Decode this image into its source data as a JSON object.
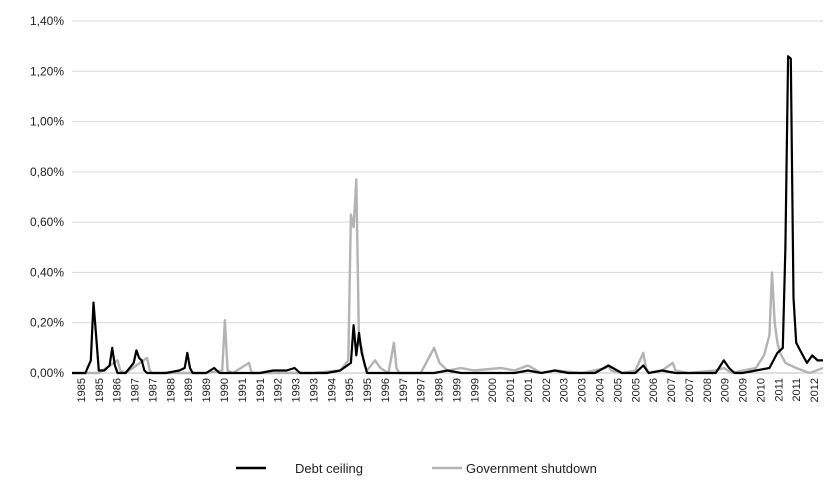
{
  "chart_data": {
    "type": "line",
    "title": "",
    "xlabel": "",
    "ylabel": "",
    "ylim": [
      0,
      1.4
    ],
    "y_ticks": [
      "0,00%",
      "0,20%",
      "0,40%",
      "0,60%",
      "0,80%",
      "1,00%",
      "1,20%",
      "1,40%"
    ],
    "x_tick_labels": [
      "1985",
      "1985",
      "1986",
      "1987",
      "1987",
      "1988",
      "1989",
      "1989",
      "1990",
      "1991",
      "1991",
      "1992",
      "1993",
      "1993",
      "1994",
      "1995",
      "1995",
      "1996",
      "1997",
      "1997",
      "1998",
      "1999",
      "1999",
      "2000",
      "2001",
      "2001",
      "2002",
      "2003",
      "2003",
      "2004",
      "2005",
      "2005",
      "2006",
      "2007",
      "2007",
      "2008",
      "2009",
      "2009",
      "2010",
      "2011",
      "2011",
      "2012"
    ],
    "xlim": [
      1985.0,
      2013.0
    ],
    "grid": "horizontal",
    "legend_position": "bottom",
    "series": [
      {
        "name": "Debt ceiling",
        "color": "#000000",
        "x": [
          1985.0,
          1985.5,
          1985.7,
          1985.8,
          1985.9,
          1986.0,
          1986.2,
          1986.4,
          1986.5,
          1986.6,
          1986.7,
          1987.0,
          1987.3,
          1987.4,
          1987.5,
          1987.6,
          1987.7,
          1987.8,
          1988.0,
          1988.5,
          1989.0,
          1989.2,
          1989.3,
          1989.4,
          1989.5,
          1990.0,
          1990.3,
          1990.5,
          1991.0,
          1991.5,
          1992.0,
          1992.5,
          1993.0,
          1993.3,
          1993.4,
          1993.5,
          1994.0,
          1994.5,
          1995.0,
          1995.4,
          1995.5,
          1995.6,
          1995.7,
          1995.8,
          1995.9,
          1996.0,
          1996.2,
          1996.5,
          1997.0,
          1997.5,
          1998.0,
          1998.5,
          1999.0,
          1999.5,
          2000.0,
          2000.5,
          2001.0,
          2001.5,
          2002.0,
          2002.5,
          2003.0,
          2003.5,
          2004.0,
          2004.5,
          2005.0,
          2005.5,
          2006.0,
          2006.3,
          2006.5,
          2007.0,
          2007.5,
          2008.0,
          2008.5,
          2009.0,
          2009.3,
          2009.5,
          2009.7,
          2010.0,
          2010.5,
          2011.0,
          2011.3,
          2011.5,
          2011.6,
          2011.7,
          2011.8,
          2011.9,
          2012.0,
          2012.2,
          2012.4,
          2012.6,
          2012.8,
          2013.0
        ],
        "values": [
          0.0,
          0.0,
          0.05,
          0.28,
          0.15,
          0.01,
          0.01,
          0.03,
          0.1,
          0.03,
          0.0,
          0.0,
          0.04,
          0.09,
          0.06,
          0.05,
          0.01,
          0.0,
          0.0,
          0.0,
          0.01,
          0.02,
          0.08,
          0.02,
          0.0,
          0.0,
          0.02,
          0.0,
          0.0,
          0.0,
          0.0,
          0.01,
          0.01,
          0.02,
          0.01,
          0.0,
          0.0,
          0.0,
          0.01,
          0.04,
          0.19,
          0.07,
          0.16,
          0.08,
          0.04,
          0.0,
          0.0,
          0.0,
          0.0,
          0.0,
          0.0,
          0.0,
          0.01,
          0.0,
          0.0,
          0.0,
          0.0,
          0.0,
          0.01,
          0.0,
          0.01,
          0.0,
          0.0,
          0.0,
          0.03,
          0.0,
          0.0,
          0.03,
          0.0,
          0.01,
          0.0,
          0.0,
          0.0,
          0.0,
          0.05,
          0.02,
          0.0,
          0.0,
          0.01,
          0.02,
          0.08,
          0.1,
          0.5,
          1.26,
          1.25,
          0.3,
          0.12,
          0.08,
          0.04,
          0.07,
          0.05,
          0.05
        ]
      },
      {
        "name": "Government shutdown",
        "color": "#b3b3b3",
        "x": [
          1985.0,
          1986.0,
          1986.7,
          1986.8,
          1987.0,
          1987.8,
          1987.9,
          1988.0,
          1989.0,
          1990.0,
          1990.6,
          1990.7,
          1990.8,
          1991.0,
          1991.6,
          1991.7,
          1992.0,
          1993.0,
          1994.0,
          1995.0,
          1995.3,
          1995.4,
          1995.5,
          1995.6,
          1995.7,
          1995.8,
          1995.9,
          1996.0,
          1996.3,
          1996.5,
          1996.8,
          1997.0,
          1997.1,
          1997.2,
          1997.4,
          1998.0,
          1998.5,
          1998.7,
          1998.9,
          1999.0,
          1999.5,
          2000.0,
          2001.0,
          2001.5,
          2002.0,
          2002.5,
          2003.0,
          2004.0,
          2004.9,
          2005.0,
          2005.1,
          2005.5,
          2006.0,
          2006.3,
          2006.4,
          2006.5,
          2007.0,
          2007.4,
          2007.5,
          2008.0,
          2009.0,
          2009.3,
          2009.6,
          2010.0,
          2010.5,
          2010.8,
          2011.0,
          2011.1,
          2011.2,
          2011.3,
          2011.4,
          2011.5,
          2011.6,
          2011.8,
          2012.0,
          2012.5,
          2013.0
        ],
        "values": [
          0.0,
          0.0,
          0.05,
          0.01,
          0.0,
          0.06,
          0.01,
          0.0,
          0.0,
          0.0,
          0.01,
          0.21,
          0.01,
          0.0,
          0.04,
          0.0,
          0.0,
          0.0,
          0.0,
          0.01,
          0.05,
          0.63,
          0.58,
          0.77,
          0.12,
          0.1,
          0.03,
          0.01,
          0.05,
          0.02,
          0.0,
          0.12,
          0.02,
          0.0,
          0.0,
          0.0,
          0.1,
          0.04,
          0.02,
          0.01,
          0.02,
          0.01,
          0.02,
          0.01,
          0.03,
          0.0,
          0.01,
          0.0,
          0.02,
          0.03,
          0.01,
          0.0,
          0.01,
          0.08,
          0.02,
          0.0,
          0.01,
          0.04,
          0.01,
          0.0,
          0.01,
          0.02,
          0.0,
          0.01,
          0.02,
          0.07,
          0.15,
          0.4,
          0.2,
          0.12,
          0.08,
          0.06,
          0.04,
          0.03,
          0.02,
          0.0,
          0.02
        ]
      }
    ]
  }
}
